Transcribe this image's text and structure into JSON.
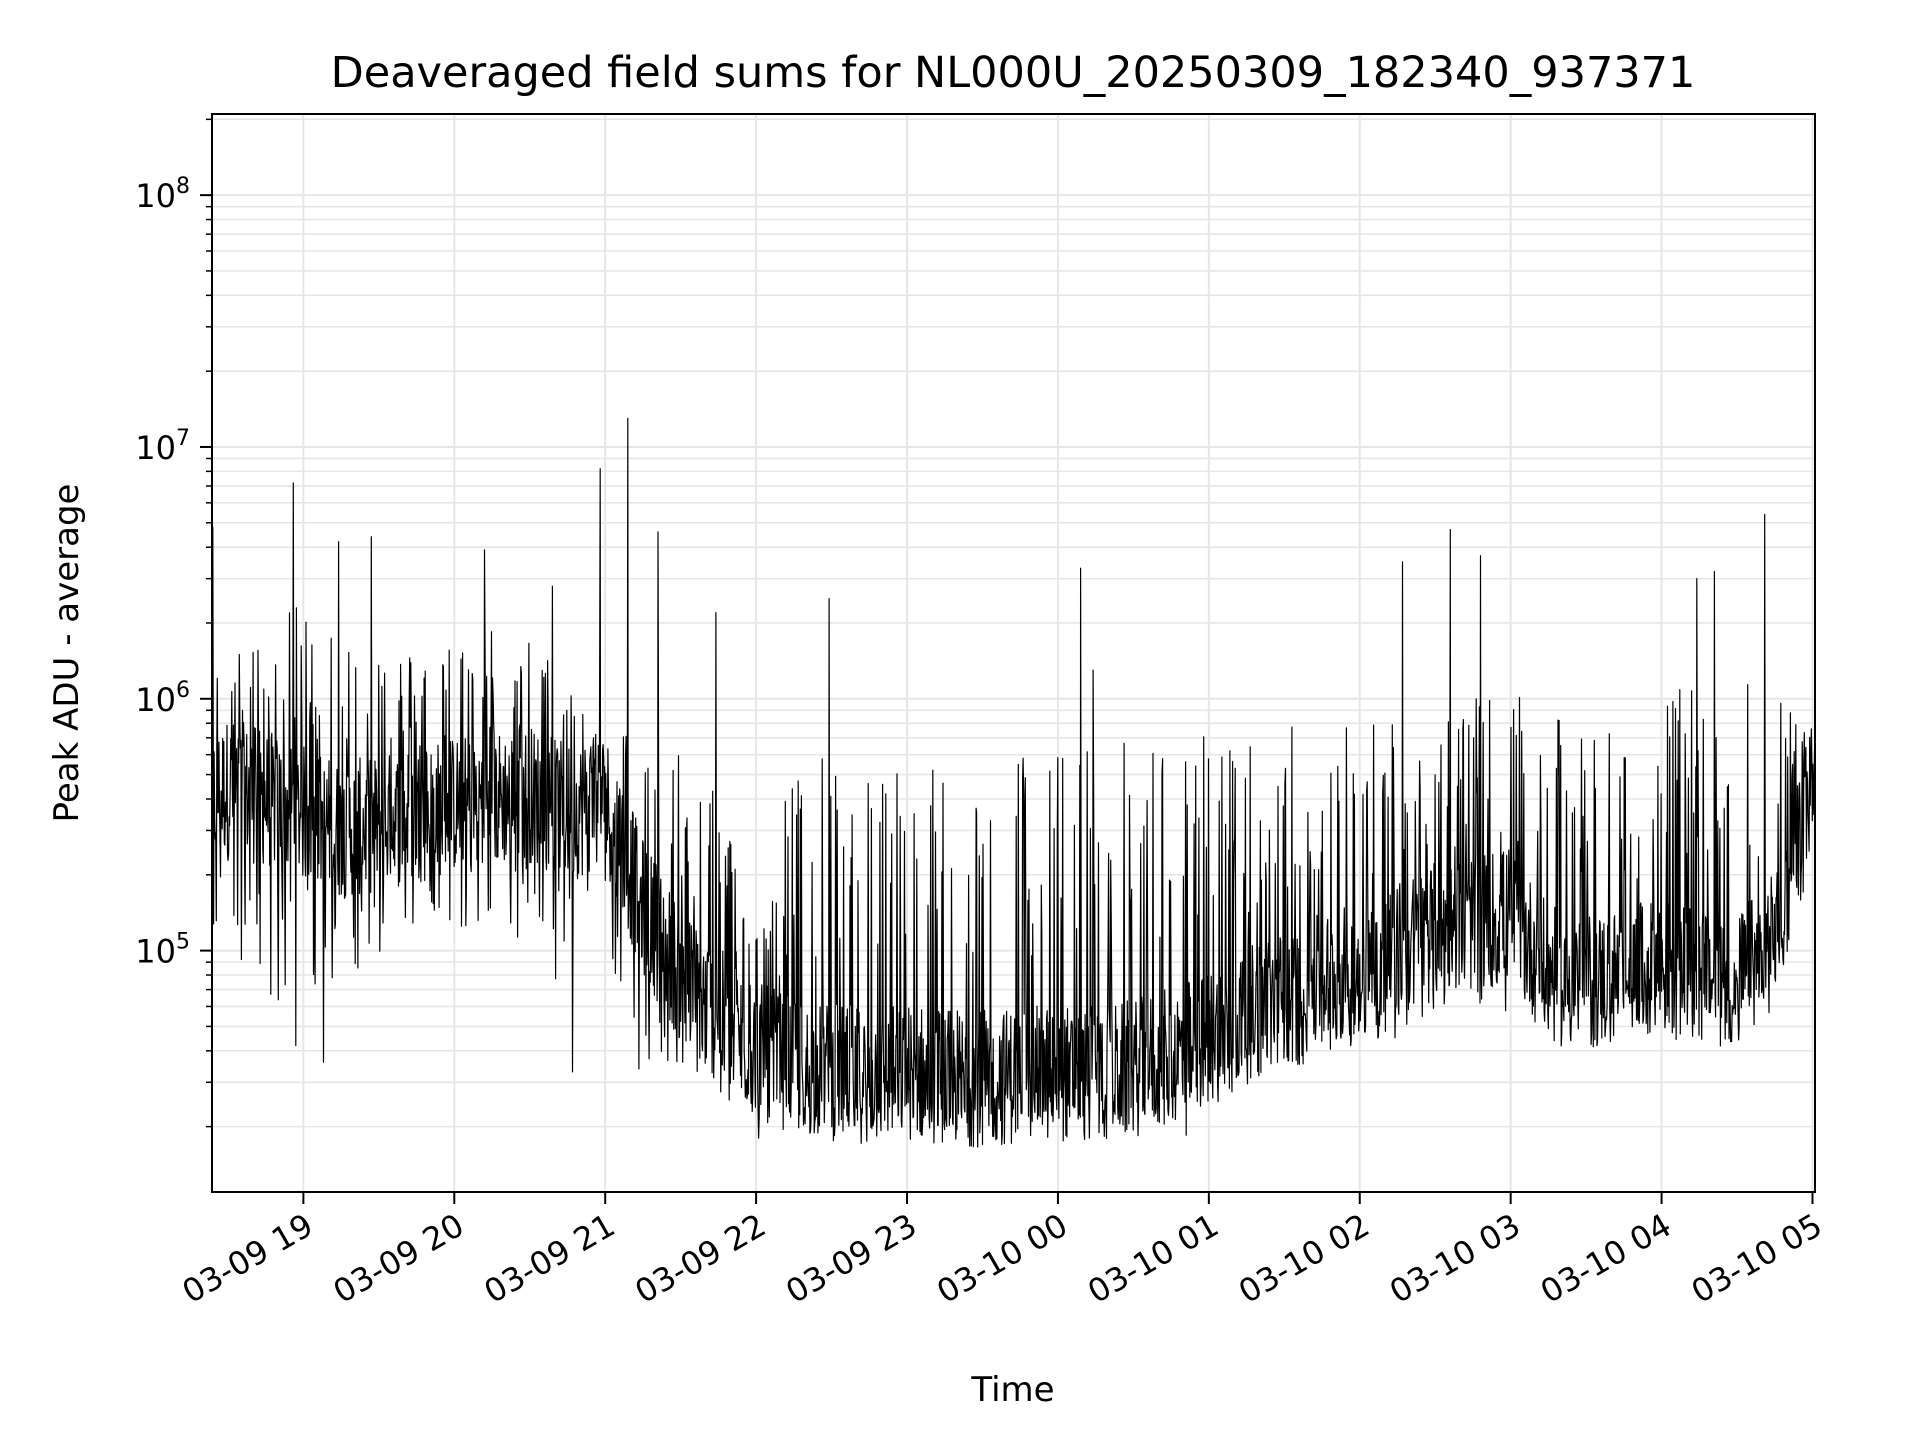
{
  "chart_data": {
    "type": "line",
    "title": "Deaveraged field sums for NL000U_20250309_182340_937371",
    "xlabel": "Time",
    "ylabel": "Peak ADU - average",
    "yscale": "log",
    "ylim": [
      11000,
      210000000
    ],
    "xlim": [
      "2025-03-09 18:23:40",
      "2025-03-10 05:01:00"
    ],
    "grid": true,
    "line_color": "#000000",
    "grid_color": "#e6e6e6",
    "x_ticks": [
      {
        "t": "2025-03-09 19:00",
        "label": "03-09 19"
      },
      {
        "t": "2025-03-09 20:00",
        "label": "03-09 20"
      },
      {
        "t": "2025-03-09 21:00",
        "label": "03-09 21"
      },
      {
        "t": "2025-03-09 22:00",
        "label": "03-09 22"
      },
      {
        "t": "2025-03-09 23:00",
        "label": "03-09 23"
      },
      {
        "t": "2025-03-10 00:00",
        "label": "03-10 00"
      },
      {
        "t": "2025-03-10 01:00",
        "label": "03-10 01"
      },
      {
        "t": "2025-03-10 02:00",
        "label": "03-10 02"
      },
      {
        "t": "2025-03-10 03:00",
        "label": "03-10 03"
      },
      {
        "t": "2025-03-10 04:00",
        "label": "03-10 04"
      },
      {
        "t": "2025-03-10 05:00",
        "label": "03-10 05"
      }
    ],
    "y_ticks": [
      {
        "value": 100000,
        "base": "10",
        "exp": "5"
      },
      {
        "value": 1000000,
        "base": "10",
        "exp": "6"
      },
      {
        "value": 10000000,
        "base": "10",
        "exp": "7"
      },
      {
        "value": 100000000,
        "base": "10",
        "exp": "8"
      }
    ],
    "series": [
      {
        "x": [
          "2025-03-09 18:23:40",
          "2025-03-09 18:30",
          "2025-03-09 18:45",
          "2025-03-09 19:00",
          "2025-03-09 19:15",
          "2025-03-09 19:30",
          "2025-03-09 19:45",
          "2025-03-09 20:00",
          "2025-03-09 20:15",
          "2025-03-09 20:30",
          "2025-03-09 20:45",
          "2025-03-09 21:00",
          "2025-03-09 21:15",
          "2025-03-09 21:30",
          "2025-03-09 21:45",
          "2025-03-09 22:00",
          "2025-03-09 22:15",
          "2025-03-09 22:30",
          "2025-03-09 22:45",
          "2025-03-09 23:00",
          "2025-03-09 23:15",
          "2025-03-09 23:30",
          "2025-03-09 23:45",
          "2025-03-10 00:00",
          "2025-03-10 00:15",
          "2025-03-10 00:30",
          "2025-03-10 00:45",
          "2025-03-10 01:00",
          "2025-03-10 01:15",
          "2025-03-10 01:30",
          "2025-03-10 01:45",
          "2025-03-10 02:00",
          "2025-03-10 02:15",
          "2025-03-10 02:30",
          "2025-03-10 02:45",
          "2025-03-10 03:00",
          "2025-03-10 03:15",
          "2025-03-10 03:30",
          "2025-03-10 03:45",
          "2025-03-10 04:00",
          "2025-03-10 04:15",
          "2025-03-10 04:30",
          "2025-03-10 04:45",
          "2025-03-10 05:00"
        ],
        "base": [
          400000,
          450000,
          400000,
          350000,
          300000,
          320000,
          350000,
          380000,
          400000,
          420000,
          350000,
          400000,
          150000,
          80000,
          55000,
          40000,
          35000,
          33000,
          32000,
          33000,
          32000,
          31000,
          32000,
          33000,
          32000,
          34000,
          38000,
          45000,
          55000,
          65000,
          75000,
          85000,
          100000,
          120000,
          130000,
          140000,
          80000,
          75000,
          80000,
          85000,
          80000,
          75000,
          110000,
          450000
        ],
        "high": [
          2500000,
          1500000,
          1800000,
          2500000,
          2000000,
          2000000,
          1500000,
          1800000,
          2000000,
          1800000,
          1200000,
          900000,
          700000,
          600000,
          500000,
          120000,
          600000,
          600000,
          600000,
          600000,
          600000,
          600000,
          650000,
          650000,
          700000,
          700000,
          700000,
          750000,
          800000,
          800000,
          850000,
          900000,
          900000,
          950000,
          1000000,
          1050000,
          900000,
          700000,
          900000,
          1000000,
          1200000,
          1300000,
          1300000,
          650000
        ],
        "low": [
          120000,
          80000,
          60000,
          50000,
          70000,
          80000,
          100000,
          120000,
          130000,
          100000,
          50000,
          90000,
          30000,
          28000,
          25000,
          22000,
          20000,
          20000,
          20000,
          21000,
          20000,
          20000,
          21000,
          22000,
          21000,
          22000,
          23000,
          25000,
          28000,
          32000,
          38000,
          40000,
          45000,
          50000,
          55000,
          50000,
          58000,
          55000,
          58000,
          60000,
          55000,
          55000,
          70000,
          350000
        ],
        "spikes": [
          {
            "t": "2025-03-09 18:24",
            "v": 4800000
          },
          {
            "t": "2025-03-09 18:56",
            "v": 7200000
          },
          {
            "t": "2025-03-09 19:14",
            "v": 4200000
          },
          {
            "t": "2025-03-09 19:27",
            "v": 4400000
          },
          {
            "t": "2025-03-09 20:12",
            "v": 3900000
          },
          {
            "t": "2025-03-09 20:39",
            "v": 2800000
          },
          {
            "t": "2025-03-09 20:58",
            "v": 8200000
          },
          {
            "t": "2025-03-09 21:09",
            "v": 13000000
          },
          {
            "t": "2025-03-09 21:21",
            "v": 4600000
          },
          {
            "t": "2025-03-09 21:44",
            "v": 2200000
          },
          {
            "t": "2025-03-09 22:29",
            "v": 2500000
          },
          {
            "t": "2025-03-10 00:09",
            "v": 3300000
          },
          {
            "t": "2025-03-10 00:14",
            "v": 1300000
          },
          {
            "t": "2025-03-10 02:17",
            "v": 3500000
          },
          {
            "t": "2025-03-10 02:36",
            "v": 4700000
          },
          {
            "t": "2025-03-10 02:48",
            "v": 3700000
          },
          {
            "t": "2025-03-10 04:14",
            "v": 3000000
          },
          {
            "t": "2025-03-10 04:21",
            "v": 3200000
          },
          {
            "t": "2025-03-10 04:41",
            "v": 5400000
          }
        ],
        "dips": [
          {
            "t": "2025-03-09 18:57",
            "v": 42000
          },
          {
            "t": "2025-03-09 19:08",
            "v": 36000
          },
          {
            "t": "2025-03-09 20:47",
            "v": 33000
          },
          {
            "t": "2025-03-09 22:01",
            "v": 18000
          },
          {
            "t": "2025-03-09 22:44",
            "v": 17500
          },
          {
            "t": "2025-03-09 23:30",
            "v": 17000
          },
          {
            "t": "2025-03-10 00:51",
            "v": 18500
          }
        ]
      }
    ]
  }
}
